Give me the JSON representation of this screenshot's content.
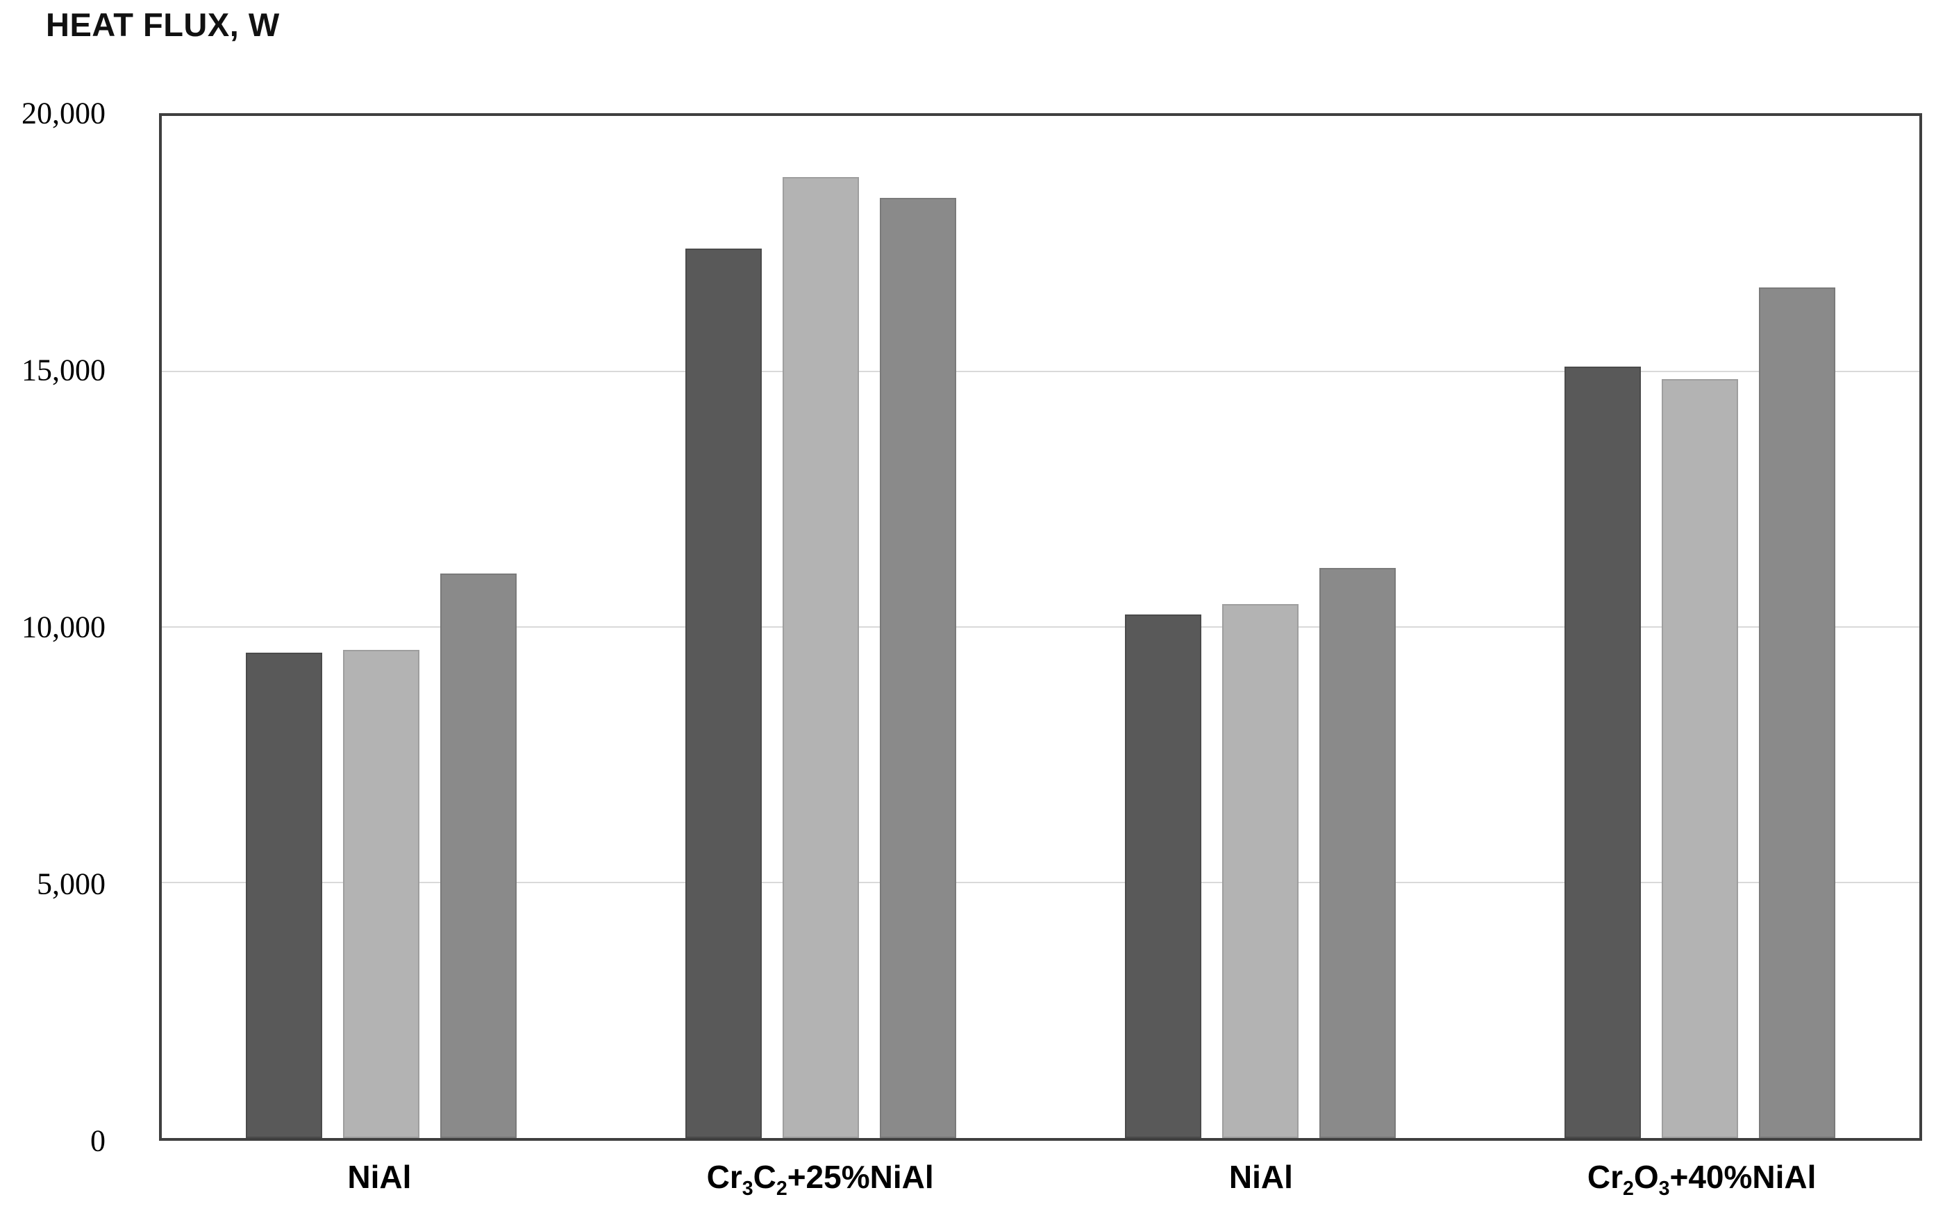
{
  "figure": {
    "title": "HEAT FLUX, W"
  },
  "chart_data": {
    "type": "bar",
    "title": "HEAT FLUX, W",
    "xlabel": "",
    "ylabel": "HEAT FLUX, W",
    "units": "W",
    "legend": null,
    "grid": "horizontal",
    "y_axis": {
      "min": 0,
      "max": 20000,
      "tick_interval": 5000,
      "tick_values": [
        0,
        5000,
        10000,
        15000,
        20000
      ],
      "tick_labels": [
        "0",
        "5,000",
        "10,000",
        "15,000",
        "20,000"
      ]
    },
    "categories": [
      "NiAl",
      "Cr3C2+25%NiAl",
      "NiAl",
      "Cr2O3+40%NiAl"
    ],
    "category_label_parts": [
      [
        {
          "t": "NiAl"
        }
      ],
      [
        {
          "t": "Cr"
        },
        {
          "s": "3"
        },
        {
          "t": "C"
        },
        {
          "s": "2"
        },
        {
          "t": "+25%NiAl"
        }
      ],
      [
        {
          "t": "NiAl"
        }
      ],
      [
        {
          "t": "Cr"
        },
        {
          "s": "2"
        },
        {
          "t": "O"
        },
        {
          "s": "3"
        },
        {
          "t": "+40%NiAl"
        }
      ]
    ],
    "series": [
      {
        "name": "dark-gray",
        "color": "#595959",
        "border_color": "#4a4a4a",
        "values": [
          9500,
          17400,
          10250,
          15100
        ]
      },
      {
        "name": "light-gray",
        "color": "#b3b3b3",
        "border_color": "#9e9e9e",
        "values": [
          9550,
          18800,
          10450,
          14850
        ]
      },
      {
        "name": "medium-gray",
        "color": "#8a8a8a",
        "border_color": "#7a7a7a",
        "values": [
          11050,
          18400,
          11150,
          16650
        ]
      }
    ]
  },
  "colors": {
    "axis_frame": "#3f3f3f",
    "gridline": "#d9d9d9",
    "background": "#ffffff",
    "text": "#000000"
  }
}
